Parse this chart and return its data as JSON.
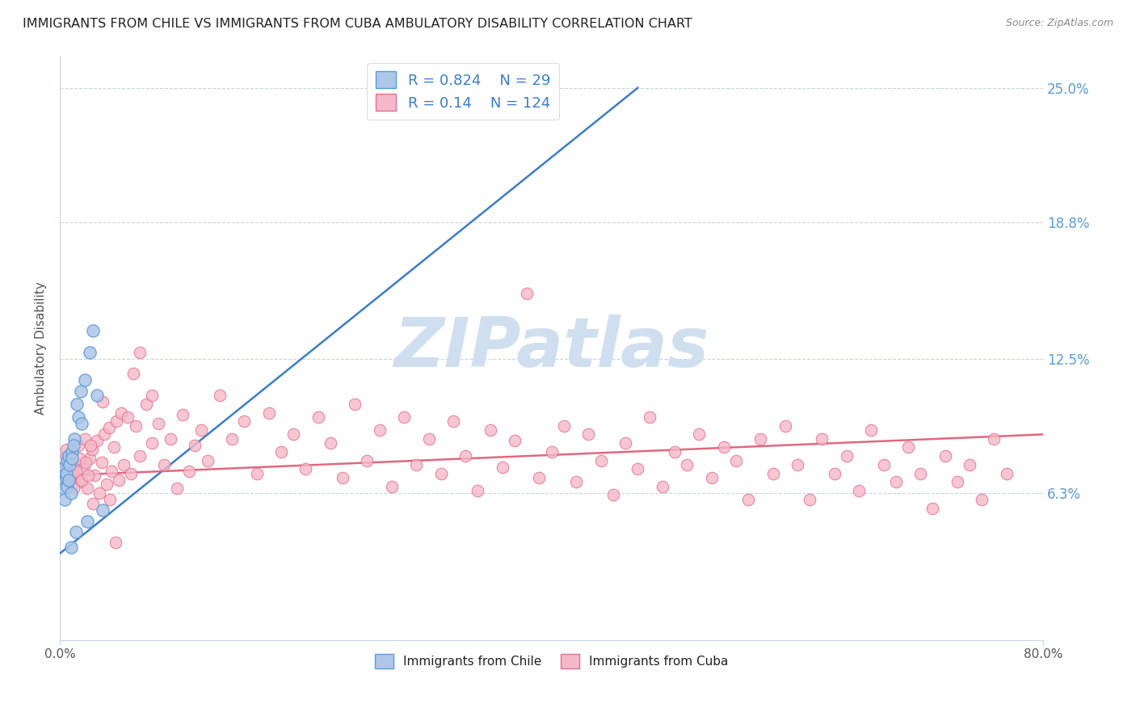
{
  "title": "IMMIGRANTS FROM CHILE VS IMMIGRANTS FROM CUBA AMBULATORY DISABILITY CORRELATION CHART",
  "source": "Source: ZipAtlas.com",
  "ylabel": "Ambulatory Disability",
  "ytick_values": [
    0.063,
    0.125,
    0.188,
    0.25
  ],
  "ytick_labels": [
    "6.3%",
    "12.5%",
    "18.8%",
    "25.0%"
  ],
  "xlim": [
    0.0,
    0.8
  ],
  "ylim": [
    -0.005,
    0.265
  ],
  "xtick_positions": [
    0.0,
    0.8
  ],
  "xtick_labels": [
    "0.0%",
    "80.0%"
  ],
  "chile_R": 0.824,
  "chile_N": 29,
  "cuba_R": 0.14,
  "cuba_N": 124,
  "chile_fill_color": "#aec6e8",
  "cuba_fill_color": "#f5b8c8",
  "chile_edge_color": "#5b9bd5",
  "cuba_edge_color": "#e07090",
  "chile_line_color": "#3b7dc8",
  "cuba_line_color": "#e06880",
  "legend_text_color": "#3b7dc8",
  "legend_label_chile": "Immigrants from Chile",
  "legend_label_cuba": "Immigrants from Cuba",
  "watermark_text": "ZIPatlas",
  "watermark_color": "#d0dff0",
  "background_color": "#ffffff",
  "grid_color": "#c8d4e0",
  "title_color": "#222222",
  "source_color": "#888888",
  "ylabel_color": "#555555",
  "right_tick_color": "#5b9bd5",
  "chile_line_x": [
    0.0,
    0.47
  ],
  "chile_line_y": [
    0.035,
    0.25
  ],
  "cuba_line_x": [
    0.0,
    0.8
  ],
  "cuba_line_y": [
    0.071,
    0.09
  ],
  "chile_x": [
    0.002,
    0.003,
    0.004,
    0.005,
    0.003,
    0.006,
    0.007,
    0.004,
    0.005,
    0.006,
    0.008,
    0.009,
    0.01,
    0.007,
    0.01,
    0.012,
    0.011,
    0.015,
    0.014,
    0.017,
    0.02,
    0.024,
    0.027,
    0.03,
    0.035,
    0.018,
    0.022,
    0.013,
    0.009
  ],
  "chile_y": [
    0.068,
    0.073,
    0.075,
    0.07,
    0.065,
    0.078,
    0.08,
    0.06,
    0.072,
    0.066,
    0.076,
    0.063,
    0.082,
    0.069,
    0.079,
    0.088,
    0.085,
    0.098,
    0.104,
    0.11,
    0.115,
    0.128,
    0.138,
    0.108,
    0.055,
    0.095,
    0.05,
    0.045,
    0.038
  ],
  "cuba_x": [
    0.003,
    0.005,
    0.007,
    0.009,
    0.01,
    0.012,
    0.014,
    0.015,
    0.017,
    0.019,
    0.02,
    0.022,
    0.024,
    0.026,
    0.028,
    0.03,
    0.032,
    0.034,
    0.036,
    0.038,
    0.04,
    0.042,
    0.044,
    0.046,
    0.048,
    0.05,
    0.052,
    0.055,
    0.058,
    0.062,
    0.065,
    0.07,
    0.075,
    0.08,
    0.085,
    0.09,
    0.095,
    0.1,
    0.105,
    0.11,
    0.115,
    0.12,
    0.13,
    0.14,
    0.15,
    0.16,
    0.17,
    0.18,
    0.19,
    0.2,
    0.21,
    0.22,
    0.23,
    0.24,
    0.25,
    0.26,
    0.27,
    0.28,
    0.29,
    0.3,
    0.31,
    0.32,
    0.33,
    0.34,
    0.35,
    0.36,
    0.37,
    0.38,
    0.39,
    0.4,
    0.41,
    0.42,
    0.43,
    0.44,
    0.45,
    0.46,
    0.47,
    0.48,
    0.49,
    0.5,
    0.51,
    0.52,
    0.53,
    0.54,
    0.55,
    0.56,
    0.57,
    0.58,
    0.59,
    0.6,
    0.61,
    0.62,
    0.63,
    0.64,
    0.65,
    0.66,
    0.67,
    0.68,
    0.69,
    0.7,
    0.71,
    0.72,
    0.73,
    0.74,
    0.75,
    0.76,
    0.77,
    0.005,
    0.008,
    0.006,
    0.011,
    0.013,
    0.016,
    0.018,
    0.021,
    0.023,
    0.025,
    0.027,
    0.035,
    0.041,
    0.045,
    0.06,
    0.065,
    0.075
  ],
  "cuba_y": [
    0.075,
    0.08,
    0.078,
    0.072,
    0.082,
    0.07,
    0.076,
    0.085,
    0.068,
    0.074,
    0.088,
    0.065,
    0.079,
    0.083,
    0.071,
    0.087,
    0.063,
    0.077,
    0.09,
    0.067,
    0.093,
    0.073,
    0.084,
    0.096,
    0.069,
    0.1,
    0.076,
    0.098,
    0.072,
    0.094,
    0.08,
    0.104,
    0.086,
    0.095,
    0.076,
    0.088,
    0.065,
    0.099,
    0.073,
    0.085,
    0.092,
    0.078,
    0.108,
    0.088,
    0.096,
    0.072,
    0.1,
    0.082,
    0.09,
    0.074,
    0.098,
    0.086,
    0.07,
    0.104,
    0.078,
    0.092,
    0.066,
    0.098,
    0.076,
    0.088,
    0.072,
    0.096,
    0.08,
    0.064,
    0.092,
    0.075,
    0.087,
    0.155,
    0.07,
    0.082,
    0.094,
    0.068,
    0.09,
    0.078,
    0.062,
    0.086,
    0.074,
    0.098,
    0.066,
    0.082,
    0.076,
    0.09,
    0.07,
    0.084,
    0.078,
    0.06,
    0.088,
    0.072,
    0.094,
    0.076,
    0.06,
    0.088,
    0.072,
    0.08,
    0.064,
    0.092,
    0.076,
    0.068,
    0.084,
    0.072,
    0.056,
    0.08,
    0.068,
    0.076,
    0.06,
    0.088,
    0.072,
    0.083,
    0.07,
    0.075,
    0.065,
    0.073,
    0.079,
    0.069,
    0.077,
    0.071,
    0.085,
    0.058,
    0.105,
    0.06,
    0.04,
    0.118,
    0.128,
    0.108
  ]
}
